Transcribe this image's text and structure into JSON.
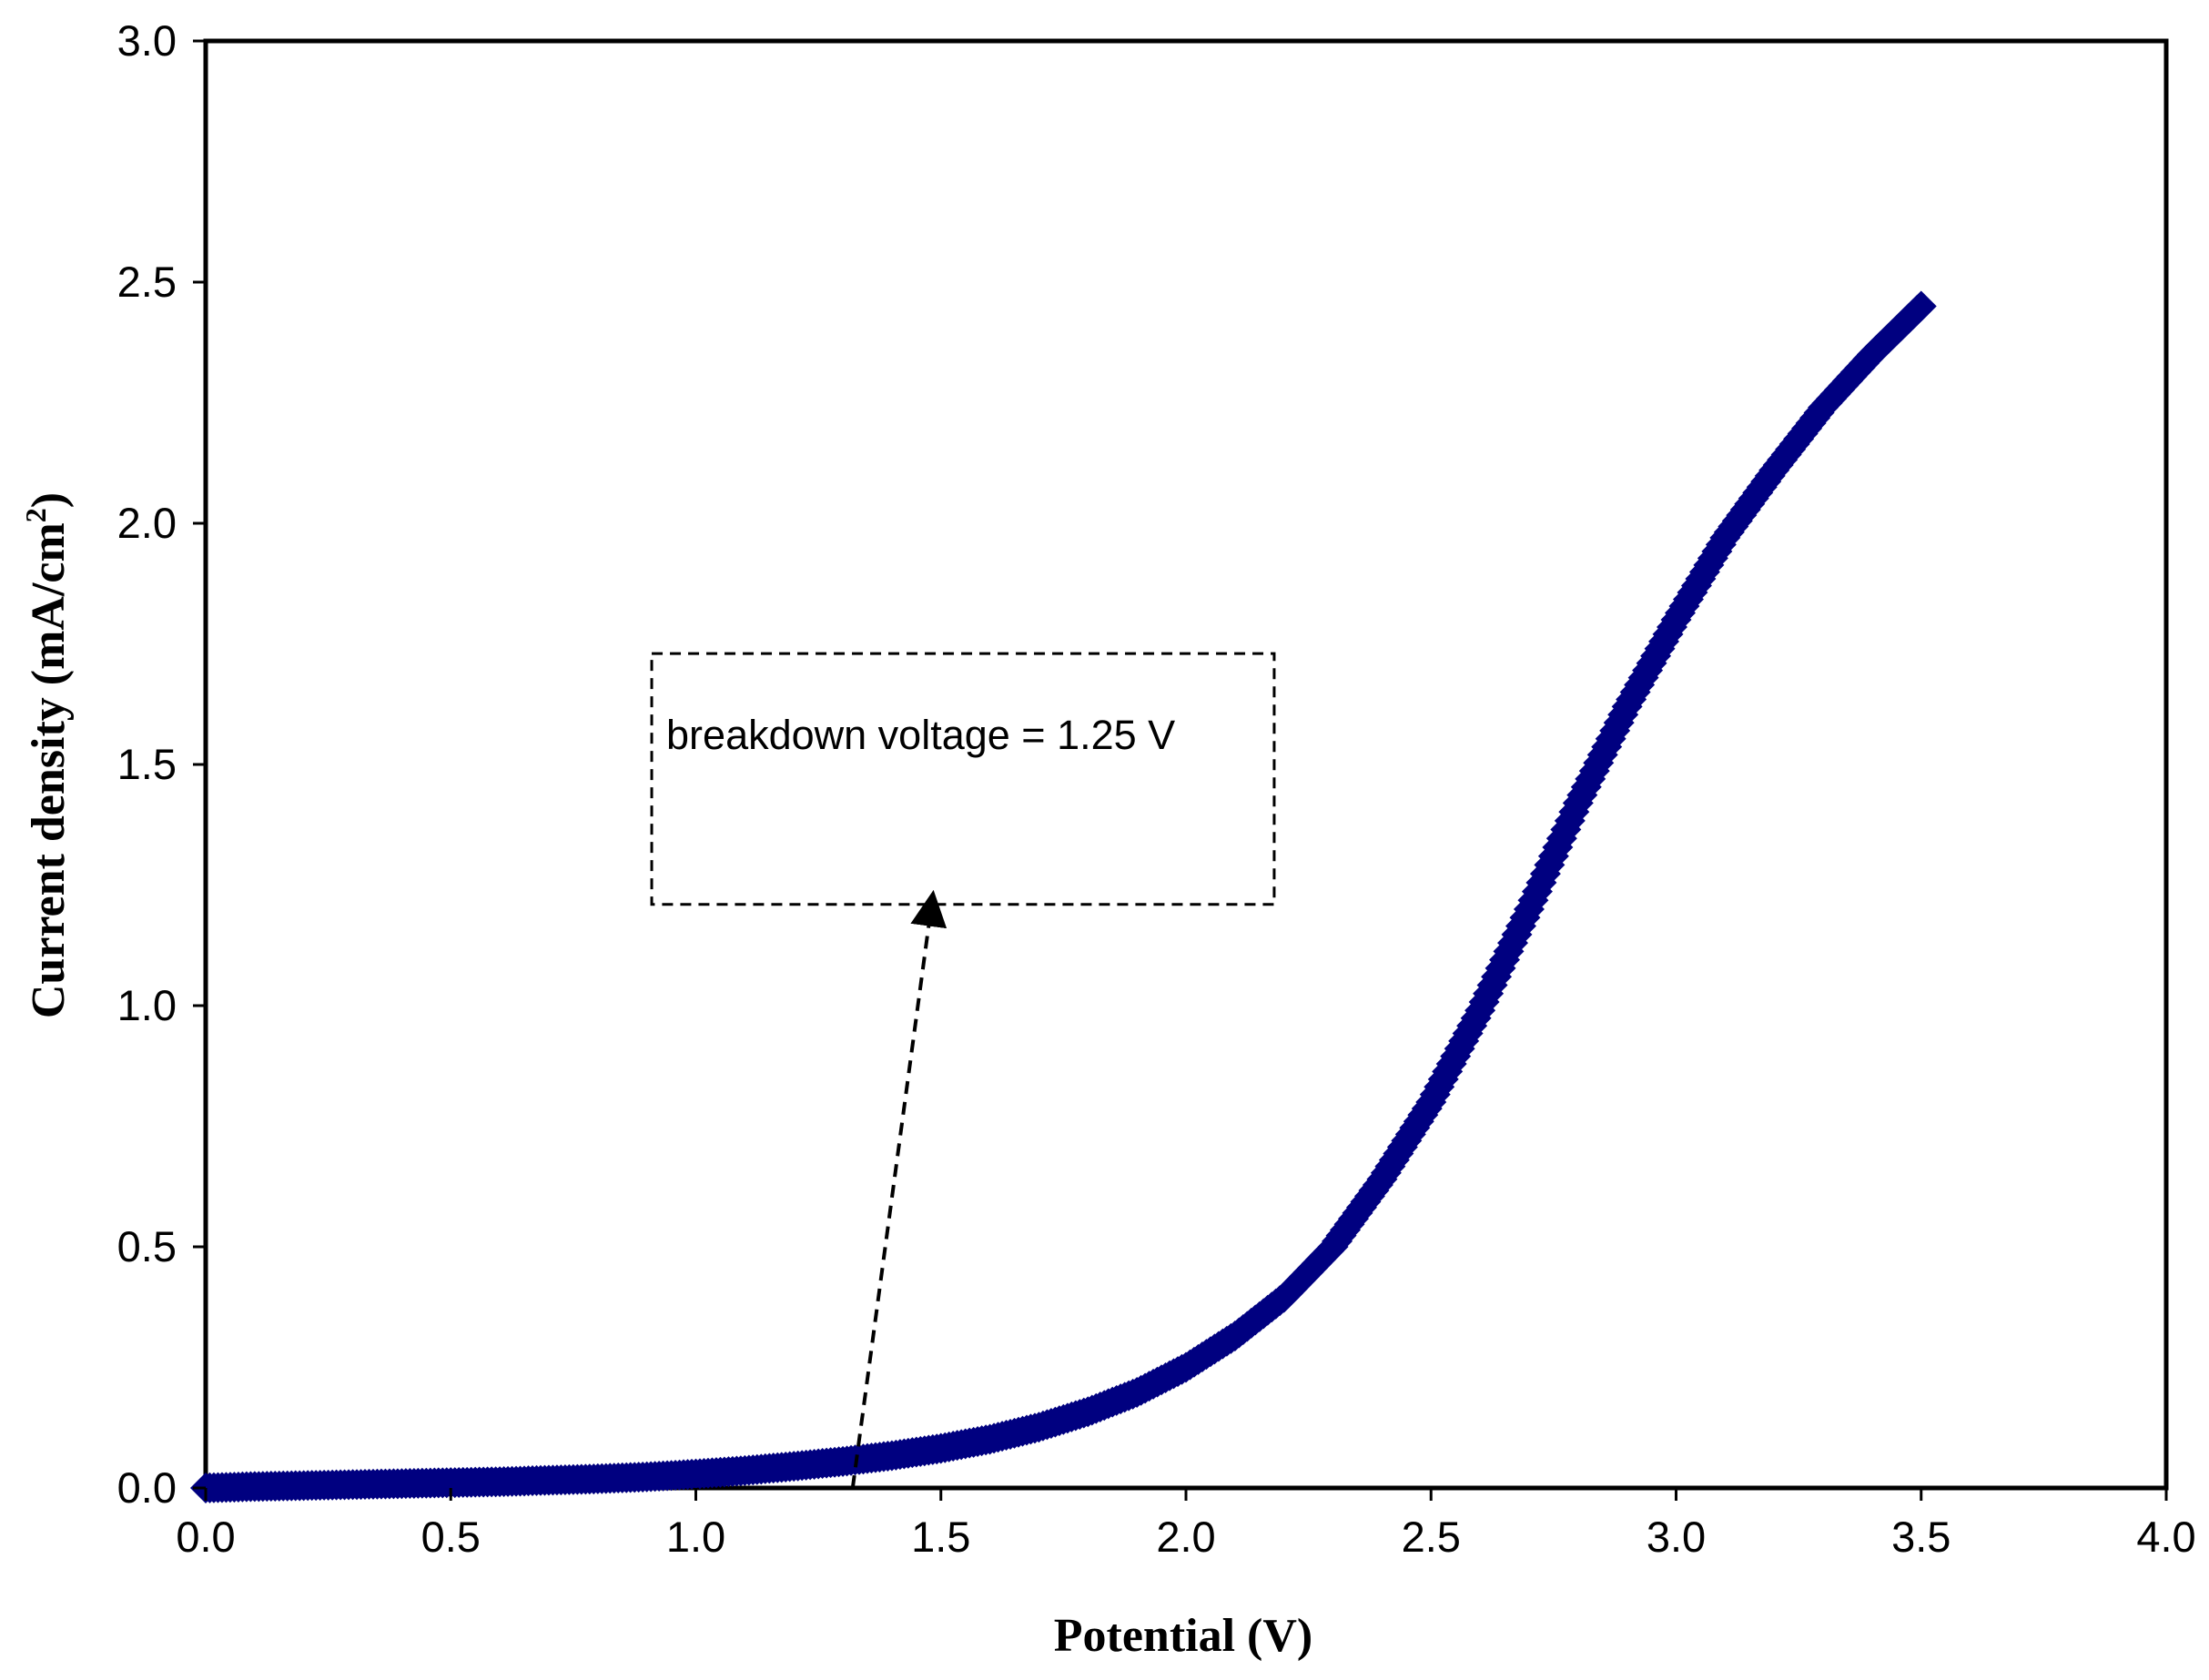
{
  "chart_data": {
    "type": "scatter",
    "title": "",
    "xlabel": "Potential (V)",
    "ylabel": "Current density (mA/cm",
    "ylabel_sup": "2",
    "ylabel_close": ")",
    "xlim": [
      0,
      4
    ],
    "ylim": [
      0,
      3
    ],
    "x_ticks": [
      "0.0",
      "0.5",
      "1.0",
      "1.5",
      "2.0",
      "2.5",
      "3.0",
      "3.5",
      "4.0"
    ],
    "y_ticks": [
      "0.0",
      "0.5",
      "1.0",
      "1.5",
      "2.0",
      "2.5",
      "3.0"
    ],
    "grid": false,
    "legend": "none",
    "series": [
      {
        "color": "#000080",
        "marker": "diamond",
        "points": [
          [
            0.0,
            0.0
          ],
          [
            0.1,
            0.003
          ],
          [
            0.2,
            0.005
          ],
          [
            0.3,
            0.007
          ],
          [
            0.4,
            0.009
          ],
          [
            0.5,
            0.011
          ],
          [
            0.6,
            0.013
          ],
          [
            0.7,
            0.016
          ],
          [
            0.8,
            0.019
          ],
          [
            0.9,
            0.023
          ],
          [
            1.0,
            0.029
          ],
          [
            1.1,
            0.036
          ],
          [
            1.2,
            0.045
          ],
          [
            1.3,
            0.055
          ],
          [
            1.4,
            0.067
          ],
          [
            1.5,
            0.082
          ],
          [
            1.6,
            0.101
          ],
          [
            1.7,
            0.126
          ],
          [
            1.8,
            0.158
          ],
          [
            1.9,
            0.198
          ],
          [
            2.0,
            0.25
          ],
          [
            2.1,
            0.315
          ],
          [
            2.2,
            0.395
          ],
          [
            2.3,
            0.5
          ],
          [
            2.4,
            0.64
          ],
          [
            2.5,
            0.8
          ],
          [
            2.6,
            0.99
          ],
          [
            2.7,
            1.2
          ],
          [
            2.8,
            1.42
          ],
          [
            2.9,
            1.62
          ],
          [
            3.0,
            1.8
          ],
          [
            3.1,
            1.97
          ],
          [
            3.2,
            2.11
          ],
          [
            3.3,
            2.24
          ],
          [
            3.4,
            2.35
          ],
          [
            3.5,
            2.45
          ]
        ]
      }
    ],
    "annotations": [
      {
        "text": "breakdown voltage = 1.25 V",
        "box": {
          "x0": 0.91,
          "x1": 2.18,
          "y0": 1.21,
          "y1": 1.73
        },
        "arrow_from": [
          1.32,
          0.0
        ],
        "arrow_to": [
          1.48,
          1.21
        ]
      }
    ]
  }
}
